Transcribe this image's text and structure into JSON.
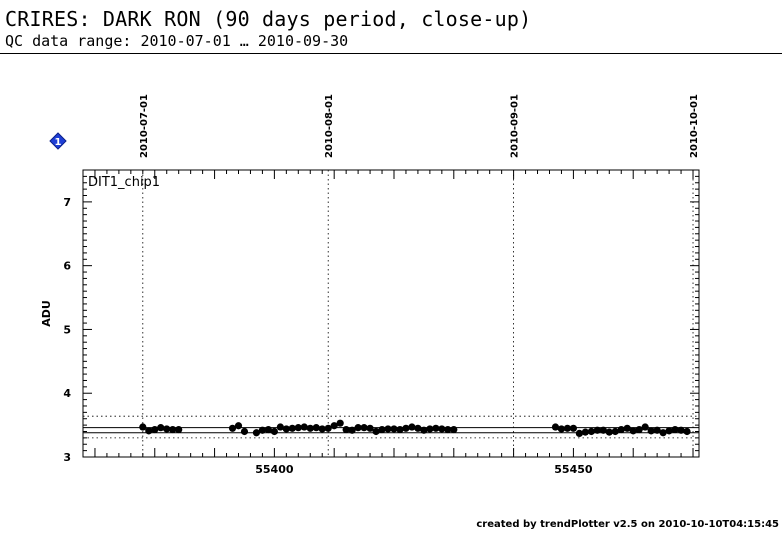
{
  "header": {
    "title": "CRIRES: DARK RON (90 days period, close-up)",
    "subtitle": "QC data range: 2010-07-01 … 2010-09-30"
  },
  "footer": {
    "text": "created by trendPlotter v2.5 on 2010-10-10T04:15:45"
  },
  "marker": {
    "label": "1",
    "color": "#1f3fd6",
    "icon": "diamond-icon"
  },
  "chart_data": {
    "type": "scatter",
    "panel_label": "DIT1_chip1",
    "ylabel": "ADU",
    "xlim": [
      55368,
      55471
    ],
    "ylim": [
      3,
      7.5
    ],
    "x_ticks": [
      55400,
      55450
    ],
    "y_ticks": [
      3,
      4,
      5,
      6,
      7
    ],
    "date_markers": [
      {
        "label": "2010-07-01",
        "x": 55378
      },
      {
        "label": "2010-08-01",
        "x": 55409
      },
      {
        "label": "2010-09-01",
        "x": 55440
      },
      {
        "label": "2010-10-01",
        "x": 55470
      }
    ],
    "reference_lines": {
      "solid": [
        3.38,
        3.46
      ],
      "dotted": [
        3.3,
        3.64
      ]
    },
    "grid": false,
    "point_color": "#000000",
    "points": [
      [
        55378,
        3.47
      ],
      [
        55379,
        3.41
      ],
      [
        55380,
        3.43
      ],
      [
        55381,
        3.46
      ],
      [
        55382,
        3.44
      ],
      [
        55383,
        3.43
      ],
      [
        55384,
        3.43
      ],
      [
        55393,
        3.45
      ],
      [
        55394,
        3.49
      ],
      [
        55395,
        3.4
      ],
      [
        55397,
        3.38
      ],
      [
        55398,
        3.42
      ],
      [
        55399,
        3.43
      ],
      [
        55400,
        3.4
      ],
      [
        55401,
        3.47
      ],
      [
        55402,
        3.44
      ],
      [
        55403,
        3.45
      ],
      [
        55404,
        3.46
      ],
      [
        55405,
        3.47
      ],
      [
        55406,
        3.45
      ],
      [
        55407,
        3.46
      ],
      [
        55408,
        3.44
      ],
      [
        55409,
        3.45
      ],
      [
        55410,
        3.49
      ],
      [
        55411,
        3.53
      ],
      [
        55412,
        3.43
      ],
      [
        55413,
        3.42
      ],
      [
        55414,
        3.46
      ],
      [
        55415,
        3.46
      ],
      [
        55416,
        3.45
      ],
      [
        55417,
        3.4
      ],
      [
        55418,
        3.43
      ],
      [
        55419,
        3.44
      ],
      [
        55420,
        3.44
      ],
      [
        55421,
        3.43
      ],
      [
        55422,
        3.45
      ],
      [
        55423,
        3.47
      ],
      [
        55424,
        3.45
      ],
      [
        55425,
        3.42
      ],
      [
        55426,
        3.44
      ],
      [
        55427,
        3.45
      ],
      [
        55428,
        3.44
      ],
      [
        55429,
        3.43
      ],
      [
        55430,
        3.43
      ],
      [
        55447,
        3.47
      ],
      [
        55448,
        3.44
      ],
      [
        55449,
        3.45
      ],
      [
        55450,
        3.45
      ],
      [
        55451,
        3.37
      ],
      [
        55452,
        3.39
      ],
      [
        55453,
        3.4
      ],
      [
        55454,
        3.42
      ],
      [
        55455,
        3.42
      ],
      [
        55456,
        3.39
      ],
      [
        55457,
        3.4
      ],
      [
        55458,
        3.43
      ],
      [
        55459,
        3.45
      ],
      [
        55460,
        3.41
      ],
      [
        55461,
        3.43
      ],
      [
        55462,
        3.47
      ],
      [
        55463,
        3.41
      ],
      [
        55464,
        3.42
      ],
      [
        55465,
        3.38
      ],
      [
        55466,
        3.41
      ],
      [
        55467,
        3.43
      ],
      [
        55468,
        3.42
      ],
      [
        55469,
        3.4
      ]
    ]
  }
}
